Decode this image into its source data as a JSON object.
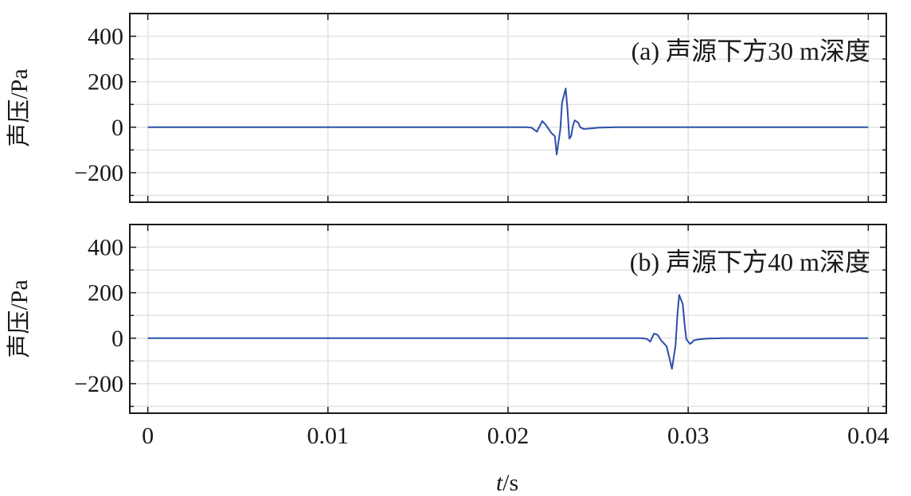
{
  "chart_data": [
    {
      "type": "line",
      "annotation": "(a) 声源下方30 m深度",
      "ylabel": "声压/Pa",
      "xlabel_italic": "t",
      "xlabel_suffix": "/s",
      "xlim": [
        -0.001,
        0.041
      ],
      "ylim": [
        -330,
        500
      ],
      "xticks": [
        0,
        0.01,
        0.02,
        0.03,
        0.04
      ],
      "xtick_labels": [
        "0",
        "0.01",
        "0.02",
        "0.03",
        "0.04"
      ],
      "yticks": [
        -200,
        0,
        200,
        400
      ],
      "ytick_labels": [
        "−200",
        "0",
        "200",
        "400"
      ],
      "show_xtick_labels": false,
      "grid": true,
      "line_color": "#2b4ea6",
      "series": [
        {
          "x": [
            0,
            0.021,
            0.0213,
            0.0216,
            0.0219,
            0.0221,
            0.0224,
            0.0226,
            0.0227,
            0.0229,
            0.023,
            0.0232,
            0.0233,
            0.0234,
            0.0235,
            0.0236,
            0.0237,
            0.0239,
            0.024,
            0.0242,
            0.0245,
            0.025,
            0.026,
            0.04
          ],
          "y": [
            0,
            0,
            -2,
            -20,
            27,
            10,
            -25,
            -40,
            -120,
            -10,
            110,
            170,
            80,
            -50,
            -40,
            5,
            30,
            20,
            0,
            -8,
            -6,
            -2,
            0,
            0
          ]
        }
      ]
    },
    {
      "type": "line",
      "annotation": "(b) 声源下方40 m深度",
      "ylabel": "声压/Pa",
      "xlabel_italic": "t",
      "xlabel_suffix": "/s",
      "xlim": [
        -0.001,
        0.041
      ],
      "ylim": [
        -330,
        500
      ],
      "xticks": [
        0,
        0.01,
        0.02,
        0.03,
        0.04
      ],
      "xtick_labels": [
        "0",
        "0.01",
        "0.02",
        "0.03",
        "0.04"
      ],
      "yticks": [
        -200,
        0,
        200,
        400
      ],
      "ytick_labels": [
        "−200",
        "0",
        "200",
        "400"
      ],
      "show_xtick_labels": true,
      "grid": true,
      "line_color": "#2b4ea6",
      "series": [
        {
          "x": [
            0,
            0.0274,
            0.0277,
            0.0279,
            0.0281,
            0.0283,
            0.0285,
            0.0288,
            0.0291,
            0.0293,
            0.0294,
            0.0295,
            0.0297,
            0.0298,
            0.0299,
            0.0301,
            0.0302,
            0.0303,
            0.0306,
            0.031,
            0.032,
            0.04
          ],
          "y": [
            0,
            0,
            -3,
            -15,
            20,
            15,
            -10,
            -35,
            -135,
            -30,
            100,
            190,
            150,
            60,
            -5,
            -25,
            -20,
            -10,
            -5,
            -2,
            0,
            0
          ]
        }
      ]
    }
  ],
  "axis_labels": {
    "panel_a_ylabel": "声压/Pa",
    "panel_b_ylabel": "声压/Pa",
    "x_italic": "t",
    "x_suffix": "/s"
  }
}
